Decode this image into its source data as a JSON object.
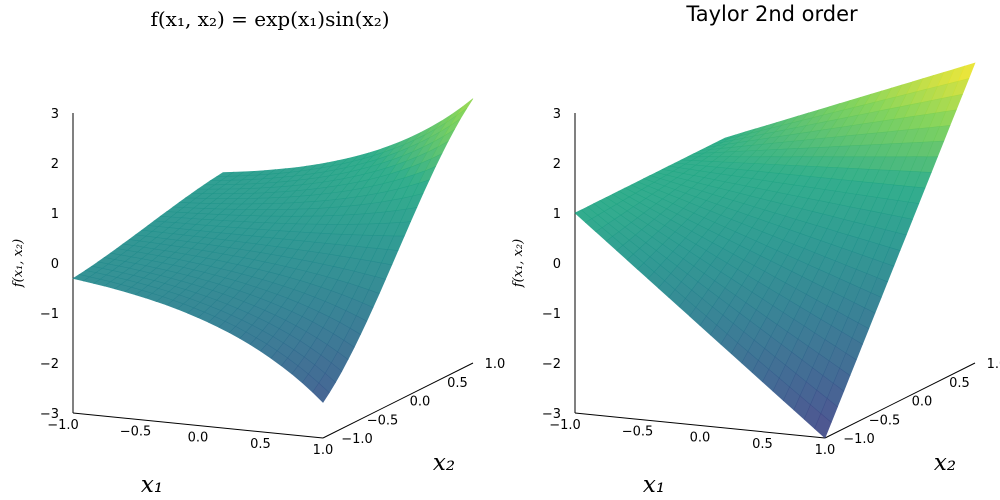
{
  "chart_data": [
    {
      "type": "surface",
      "title": "f(x₁, x₂) = exp(x₁)sin(x₂)",
      "xlabel": "x₁",
      "ylabel": "x₂",
      "zlabel": "f(x₁, x₂)",
      "xlim": [
        -1.0,
        1.0
      ],
      "ylim": [
        -1.0,
        1.0
      ],
      "zlim": [
        -3,
        3
      ],
      "x_ticks": [
        "−1.0",
        "−0.5",
        "0.0",
        "0.5",
        "1.0"
      ],
      "y_ticks": [
        "−1.0",
        "−0.5",
        "0.0",
        "0.5",
        "1.0"
      ],
      "z_ticks": [
        "−3",
        "−2",
        "−1",
        "0",
        "1",
        "2",
        "3"
      ],
      "colormap": "viridis",
      "corner_values": [
        {
          "x1": -1.0,
          "x2": -1.0,
          "f": -0.31
        },
        {
          "x1": -1.0,
          "x2": 1.0,
          "f": 0.31
        },
        {
          "x1": 1.0,
          "x2": -1.0,
          "f": -2.29
        },
        {
          "x1": 1.0,
          "x2": 1.0,
          "f": 2.29
        }
      ]
    },
    {
      "type": "surface",
      "title": "Taylor 2nd order",
      "xlabel": "x₁",
      "ylabel": "x₂",
      "zlabel": "f(x₁, x₂)",
      "xlim": [
        -1.0,
        1.0
      ],
      "ylim": [
        -1.0,
        1.0
      ],
      "zlim": [
        -3,
        3
      ],
      "x_ticks": [
        "−1.0",
        "−0.5",
        "0.0",
        "0.5",
        "1.0"
      ],
      "y_ticks": [
        "−1.0",
        "−0.5",
        "0.0",
        "0.5",
        "1.0"
      ],
      "z_ticks": [
        "−3",
        "−2",
        "−1",
        "0",
        "1",
        "2",
        "3"
      ],
      "colormap": "viridis",
      "corner_values": [
        {
          "x1": -1.0,
          "x2": -1.0,
          "f": 1.0
        },
        {
          "x1": -1.0,
          "x2": 1.0,
          "f": 1.0
        },
        {
          "x1": 1.0,
          "x2": -1.0,
          "f": -3.0
        },
        {
          "x1": 1.0,
          "x2": 1.0,
          "f": 3.0
        }
      ]
    }
  ]
}
